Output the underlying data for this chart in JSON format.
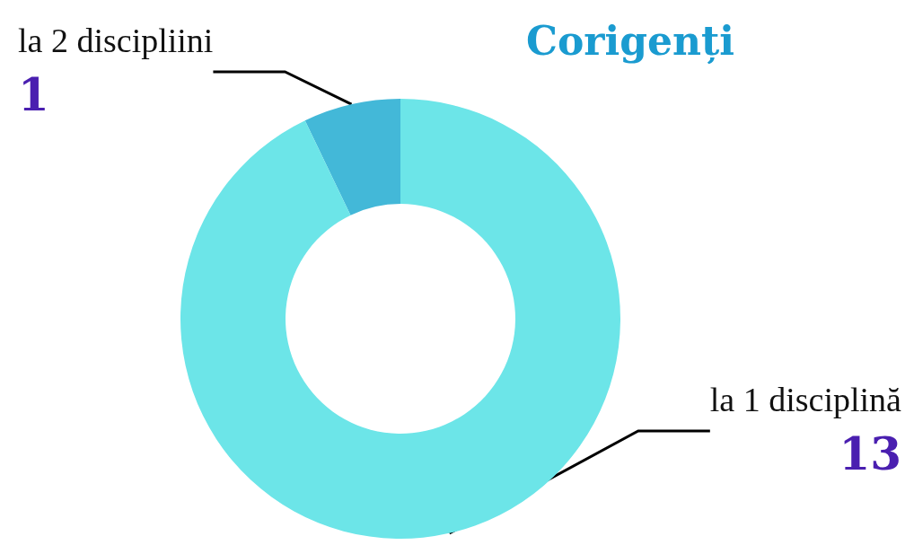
{
  "chart_data": {
    "type": "donut",
    "title": "Corigenți",
    "categories": [
      "la 2 discipliini",
      "la 1 disciplină"
    ],
    "values": [
      1,
      13
    ],
    "colors": [
      "#43b8d8",
      "#6ce5e8"
    ],
    "data_labels": true,
    "legend": false
  }
}
